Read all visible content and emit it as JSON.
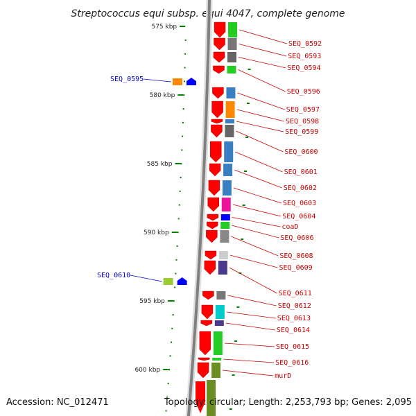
{
  "title": "Streptococcus equi subsp. equi 4047, complete genome",
  "footer": {
    "accession": "Accession: NC_012471",
    "topology": "Topology: circular; Length: 2,253,793 bp; Genes: 2,095"
  },
  "colors": {
    "backbone": "#808080",
    "gene_red": "#ff0000",
    "label_red": "#cc0000",
    "label_blue": "#0000cc",
    "tick_green": "#008000"
  },
  "scale_labels": [
    {
      "kbp": 575,
      "text": "575 kbp"
    },
    {
      "kbp": 580,
      "text": "580 kbp"
    },
    {
      "kbp": 585,
      "text": "585 kbp"
    },
    {
      "kbp": 590,
      "text": "590 kbp"
    },
    {
      "kbp": 595,
      "text": "595 kbp"
    },
    {
      "kbp": 600,
      "text": "600 kbp"
    }
  ],
  "forward_genes": [
    {
      "name": "SEQ_0592",
      "cog_color": "#22cc22"
    },
    {
      "name": "SEQ_0593",
      "cog_color": "#777777"
    },
    {
      "name": "SEQ_0594",
      "cog_color": "#666666"
    },
    {
      "name": "SEQ_0596",
      "cog_color": "#22cc22"
    },
    {
      "name": "SEQ_0597",
      "cog_color": "#3a7fc1"
    },
    {
      "name": "SEQ_0598",
      "cog_color": "#ff8800"
    },
    {
      "name": "SEQ_0599",
      "cog_color": "#3a7fc1"
    },
    {
      "name": "SEQ_0600",
      "cog_color": "#666666"
    },
    {
      "name": "SEQ_0601",
      "cog_color": "#3a7fc1"
    },
    {
      "name": "SEQ_0602",
      "cog_color": "#3a7fc1"
    },
    {
      "name": "SEQ_0603",
      "cog_color": "#3a7fc1"
    },
    {
      "name": "SEQ_0604",
      "cog_color": "#ee1199"
    },
    {
      "name": "coaD",
      "cog_color": "#0000ff"
    },
    {
      "name": "SEQ_0606",
      "cog_color": "#22cc22"
    },
    {
      "name": "SEQ_0608",
      "cog_color": "#888888"
    },
    {
      "name": "SEQ_0609",
      "cog_color": "#cccccc"
    },
    {
      "name": "SEQ_0611",
      "cog_color": "#4b3a8c"
    },
    {
      "name": "SEQ_0612",
      "cog_color": "#777777"
    },
    {
      "name": "SEQ_0613",
      "cog_color": "#00cccc"
    },
    {
      "name": "SEQ_0614",
      "cog_color": "#4b3a8c"
    },
    {
      "name": "SEQ_0615",
      "cog_color": "#22cc22"
    },
    {
      "name": "SEQ_0616",
      "cog_color": "#22cc22"
    },
    {
      "name": "murD",
      "cog_color": "#6b8e23"
    }
  ],
  "reverse_genes": [
    {
      "name": "SEQ_0595",
      "cog_color": "#ff8800"
    },
    {
      "name": "SEQ_0610",
      "cog_color": "#9acd32"
    }
  ]
}
